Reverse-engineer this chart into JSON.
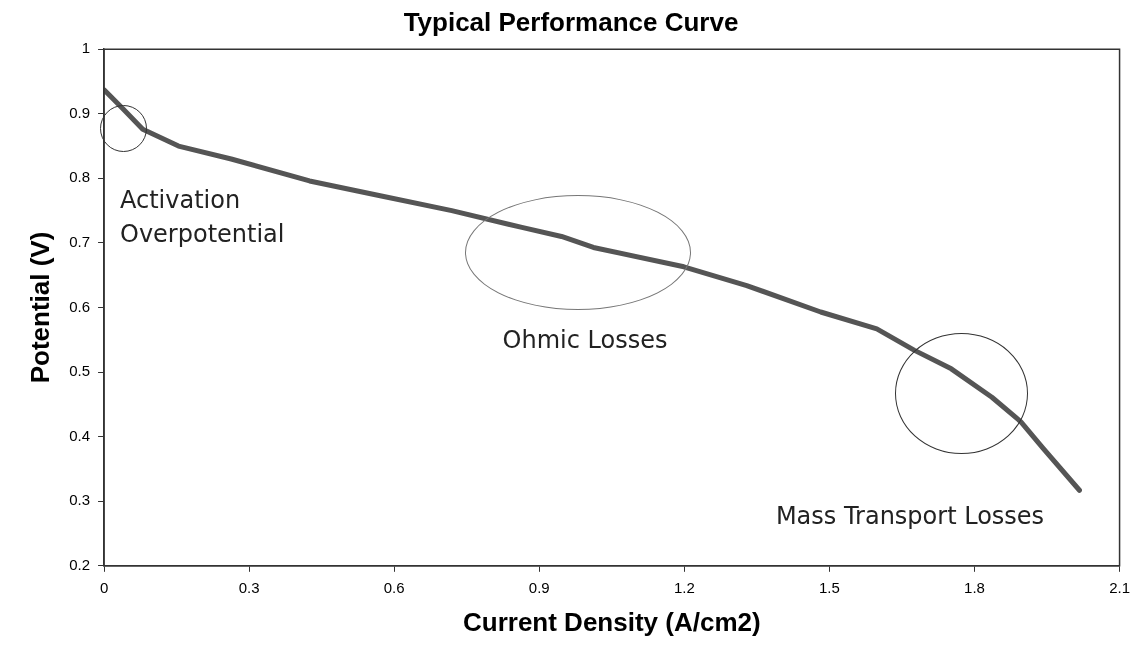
{
  "chart_data": {
    "type": "line",
    "title": "Typical Performance Curve",
    "xlabel": "Current Density (A/cm2)",
    "ylabel": "Potential (V)",
    "series": [
      {
        "color": "#555555",
        "x": [
          0,
          0.04,
          0.08,
          0.154,
          0.263,
          0.425,
          0.571,
          0.719,
          0.864,
          0.946,
          1.012,
          1.199,
          1.329,
          1.482,
          1.598,
          1.675,
          1.752,
          1.836,
          1.896,
          1.942,
          2.017
        ],
        "values": [
          0.937,
          0.907,
          0.876,
          0.85,
          0.83,
          0.796,
          0.773,
          0.75,
          0.724,
          0.71,
          0.693,
          0.663,
          0.634,
          0.593,
          0.567,
          0.534,
          0.505,
          0.461,
          0.423,
          0.382,
          0.317
        ]
      }
    ],
    "xlim": [
      0,
      2.1
    ],
    "xticks": [
      0,
      0.3,
      0.6,
      0.9,
      1.2,
      1.5,
      1.8,
      2.1
    ],
    "ylim": [
      0.2,
      1
    ],
    "yticks": [
      0.2,
      0.3,
      0.4,
      0.5,
      0.6,
      0.7,
      0.8,
      0.9,
      1
    ],
    "grid": false,
    "legend": false,
    "marker": "none",
    "line_style": "solid",
    "annotations": [
      "Activation\nOverpotential",
      "Ohmic Losses",
      "Mass Transport Losses"
    ]
  }
}
